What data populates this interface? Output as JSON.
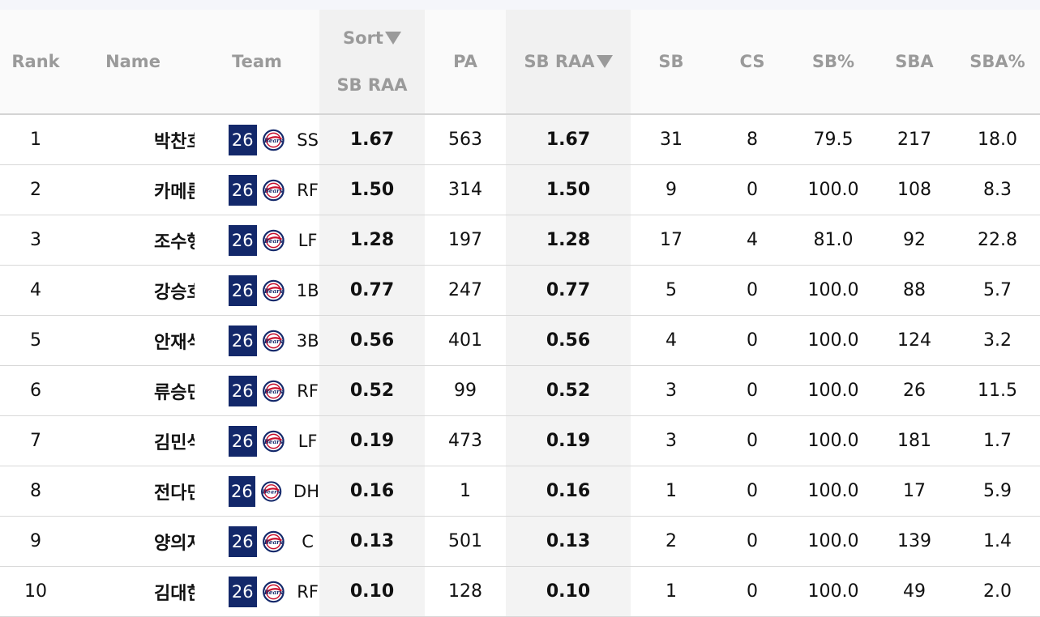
{
  "columns": {
    "rank": "Rank",
    "name": "Name",
    "team": "Team",
    "sort_label": "Sort",
    "sort_metric": "SB RAA",
    "pa": "PA",
    "sb_raa": "SB RAA",
    "sb": "SB",
    "cs": "CS",
    "sb_pct": "SB%",
    "sba": "SBA",
    "sba_pct": "SBA%"
  },
  "colors": {
    "badge_bg": "#13286a",
    "header_text": "#9a9a9a",
    "highlight_col": "#f3f3f3"
  },
  "team_logo_icon": "bears-logo-icon",
  "rows": [
    {
      "rank": "1",
      "name": "박찬호",
      "badge": "26",
      "pos": "SS",
      "sort": "1.67",
      "pa": "563",
      "sb_raa": "1.67",
      "sb": "31",
      "cs": "8",
      "sb_pct": "79.5",
      "sba": "217",
      "sba_pct": "18.0"
    },
    {
      "rank": "2",
      "name": "카메론",
      "badge": "26",
      "pos": "RF",
      "sort": "1.50",
      "pa": "314",
      "sb_raa": "1.50",
      "sb": "9",
      "cs": "0",
      "sb_pct": "100.0",
      "sba": "108",
      "sba_pct": "8.3"
    },
    {
      "rank": "3",
      "name": "조수행",
      "badge": "26",
      "pos": "LF",
      "sort": "1.28",
      "pa": "197",
      "sb_raa": "1.28",
      "sb": "17",
      "cs": "4",
      "sb_pct": "81.0",
      "sba": "92",
      "sba_pct": "22.8"
    },
    {
      "rank": "4",
      "name": "강승호",
      "badge": "26",
      "pos": "1B",
      "sort": "0.77",
      "pa": "247",
      "sb_raa": "0.77",
      "sb": "5",
      "cs": "0",
      "sb_pct": "100.0",
      "sba": "88",
      "sba_pct": "5.7"
    },
    {
      "rank": "5",
      "name": "안재석",
      "badge": "26",
      "pos": "3B",
      "sort": "0.56",
      "pa": "401",
      "sb_raa": "0.56",
      "sb": "4",
      "cs": "0",
      "sb_pct": "100.0",
      "sba": "124",
      "sba_pct": "3.2"
    },
    {
      "rank": "6",
      "name": "류승민",
      "badge": "26",
      "pos": "RF",
      "sort": "0.52",
      "pa": "99",
      "sb_raa": "0.52",
      "sb": "3",
      "cs": "0",
      "sb_pct": "100.0",
      "sba": "26",
      "sba_pct": "11.5"
    },
    {
      "rank": "7",
      "name": "김민석",
      "badge": "26",
      "pos": "LF",
      "sort": "0.19",
      "pa": "473",
      "sb_raa": "0.19",
      "sb": "3",
      "cs": "0",
      "sb_pct": "100.0",
      "sba": "181",
      "sba_pct": "1.7"
    },
    {
      "rank": "8",
      "name": "전다민",
      "badge": "26",
      "pos": "DH",
      "sort": "0.16",
      "pa": "1",
      "sb_raa": "0.16",
      "sb": "1",
      "cs": "0",
      "sb_pct": "100.0",
      "sba": "17",
      "sba_pct": "5.9"
    },
    {
      "rank": "9",
      "name": "양의지",
      "badge": "26",
      "pos": "C",
      "sort": "0.13",
      "pa": "501",
      "sb_raa": "0.13",
      "sb": "2",
      "cs": "0",
      "sb_pct": "100.0",
      "sba": "139",
      "sba_pct": "1.4"
    },
    {
      "rank": "10",
      "name": "김대한",
      "badge": "26",
      "pos": "RF",
      "sort": "0.10",
      "pa": "128",
      "sb_raa": "0.10",
      "sb": "1",
      "cs": "0",
      "sb_pct": "100.0",
      "sba": "49",
      "sba_pct": "2.0"
    }
  ]
}
